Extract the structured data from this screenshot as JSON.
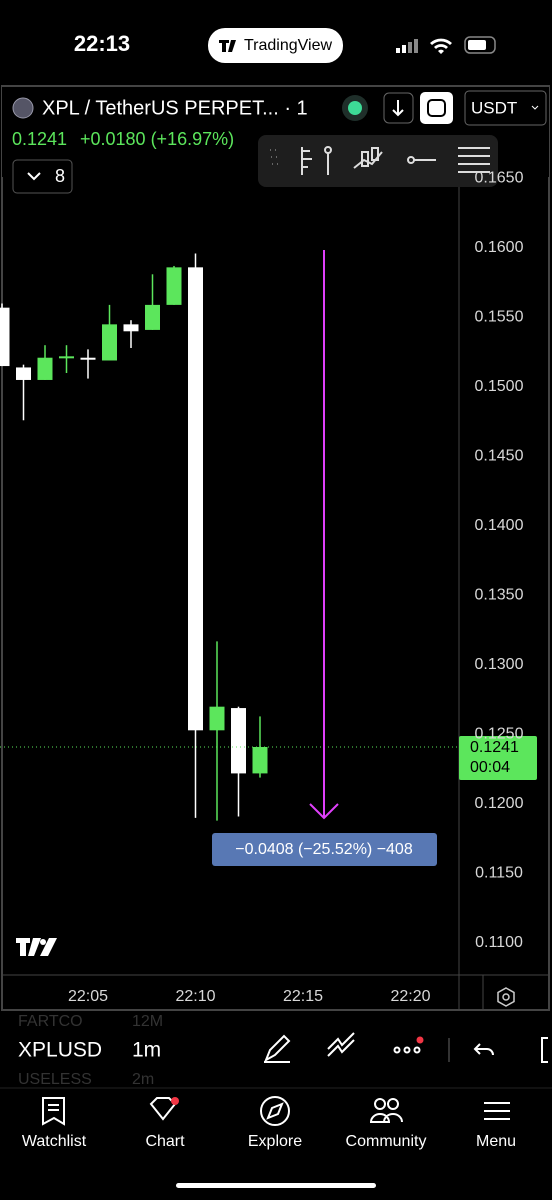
{
  "status_bar": {
    "time": "22:13",
    "app": "TradingView"
  },
  "header": {
    "symbol": "XPL / TetherUS PERPET... · 1",
    "currency": "USDT",
    "last": "0.1241",
    "change": "+0.0180 (+16.97%)",
    "indicators": "8"
  },
  "chart_data": {
    "type": "candlestick",
    "x": [
      1,
      2,
      3,
      4,
      5,
      6,
      7,
      8,
      9,
      10,
      11,
      12,
      13
    ],
    "open": [
      0.1557,
      0.1514,
      0.1505,
      0.1521,
      0.1521,
      0.1519,
      0.1545,
      0.1541,
      0.1559,
      0.1586,
      0.1253,
      0.1269,
      0.1222
    ],
    "high": [
      0.156,
      0.1516,
      0.153,
      0.153,
      0.1527,
      0.1559,
      0.1548,
      0.1581,
      0.1587,
      0.1596,
      0.1317,
      0.127,
      0.1263
    ],
    "low": [
      0.1515,
      0.1476,
      0.1505,
      0.151,
      0.1506,
      0.1519,
      0.1528,
      0.1541,
      0.1559,
      0.119,
      0.1188,
      0.1191,
      0.1219
    ],
    "close": [
      0.1515,
      0.1505,
      0.1521,
      0.1522,
      0.152,
      0.1545,
      0.154,
      0.1559,
      0.1586,
      0.1253,
      0.127,
      0.1222,
      0.1241
    ],
    "up_color": "#5ce65c",
    "down_color": "#ffffff",
    "xlim": [
      0.907,
      22.256
    ],
    "xticks": [
      {
        "value": 5,
        "label": "22:05"
      },
      {
        "value": 10,
        "label": "22:10"
      },
      {
        "value": 15,
        "label": "22:15"
      },
      {
        "value": 20,
        "label": "22:20"
      }
    ],
    "ylim": [
      0.1077,
      0.1715
    ],
    "yticks": [
      {
        "value": 0.11,
        "label": "0.1100"
      },
      {
        "value": 0.115,
        "label": "0.1150"
      },
      {
        "value": 0.12,
        "label": "0.1200"
      },
      {
        "value": 0.125,
        "label": "0.1250"
      },
      {
        "value": 0.13,
        "label": "0.1300"
      },
      {
        "value": 0.135,
        "label": "0.1350"
      },
      {
        "value": 0.14,
        "label": "0.1400"
      },
      {
        "value": 0.145,
        "label": "0.1450"
      },
      {
        "value": 0.15,
        "label": "0.1500"
      },
      {
        "value": 0.155,
        "label": "0.1550"
      },
      {
        "value": 0.16,
        "label": "0.1600"
      },
      {
        "value": 0.165,
        "label": "0.1650"
      }
    ],
    "last_price": 0.1241,
    "countdown": "00:04",
    "measure": "−0.0408 (−25.52%) −408"
  },
  "symbol_bar": {
    "symbol": "XPLUSD",
    "interval": "1m",
    "faded": [
      {
        "symbol": "FARTCO",
        "interval": "12M"
      },
      {
        "symbol": "USELESS",
        "interval": "2m"
      }
    ]
  },
  "nav": [
    "Watchlist",
    "Chart",
    "Explore",
    "Community",
    "Menu"
  ]
}
